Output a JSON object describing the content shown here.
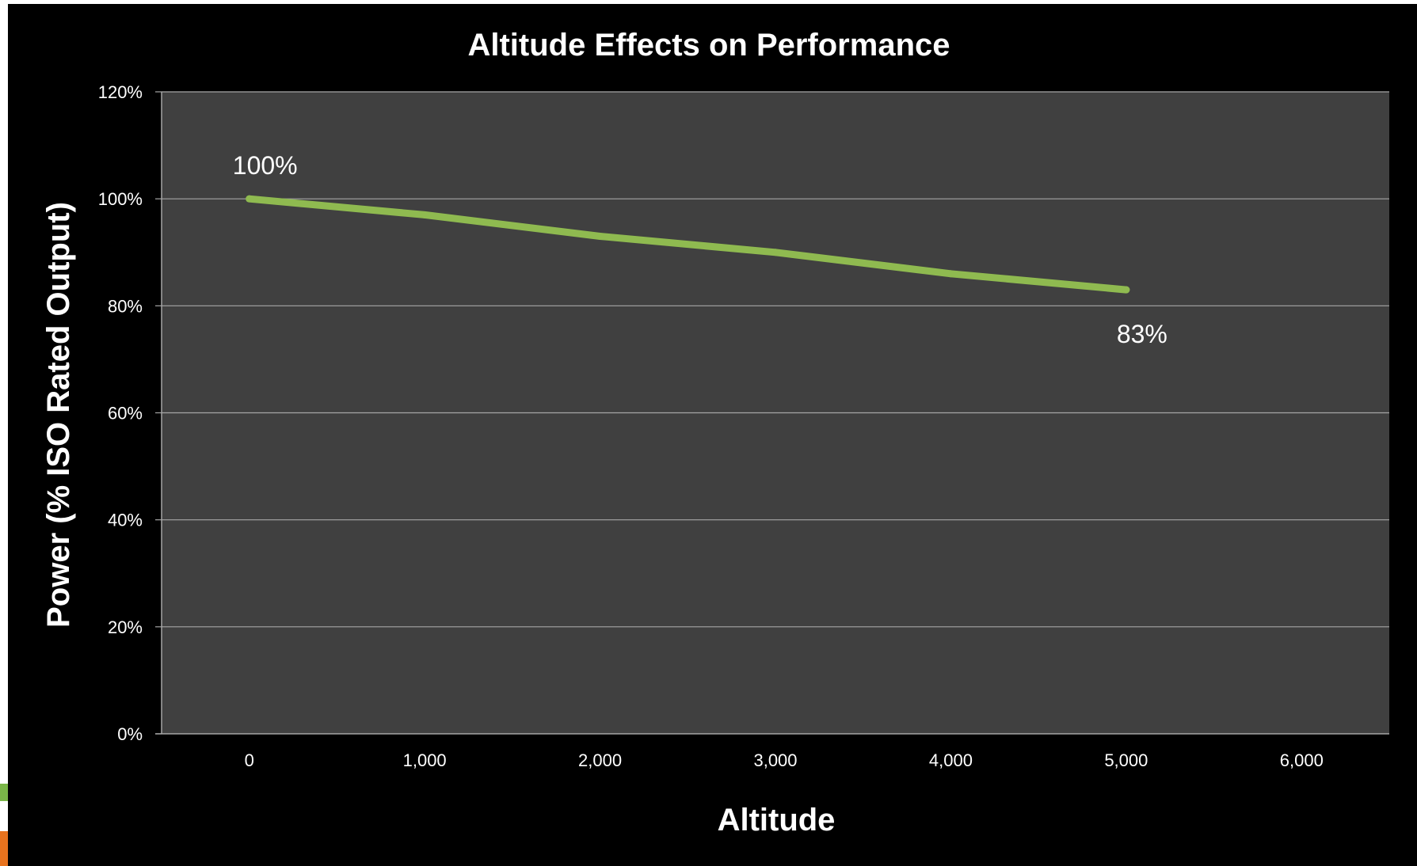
{
  "colors": {
    "background": "#000000",
    "plot_area": "#404040",
    "gridline": "#a6a6a6",
    "series_line": "#8fba50",
    "text": "#ffffff"
  },
  "chart_data": {
    "type": "line",
    "title": "Altitude Effects on Performance",
    "xlabel": "Altitude",
    "ylabel": "Power (% ISO Rated Output)",
    "xlim": [
      -500,
      6500
    ],
    "ylim": [
      0,
      1.2
    ],
    "x_ticks": [
      0,
      1000,
      2000,
      3000,
      4000,
      5000,
      6000
    ],
    "x_tick_labels": [
      "0",
      "1,000",
      "2,000",
      "3,000",
      "4,000",
      "5,000",
      "6,000"
    ],
    "y_ticks": [
      0,
      0.2,
      0.4,
      0.6,
      0.8,
      1.0,
      1.2
    ],
    "y_tick_labels": [
      "0%",
      "20%",
      "40%",
      "60%",
      "80%",
      "100%",
      "120%"
    ],
    "grid": true,
    "legend": "none",
    "series": [
      {
        "x": [
          0,
          1000,
          2000,
          3000,
          4000,
          5000
        ],
        "values": [
          1.0,
          0.97,
          0.93,
          0.9,
          0.86,
          0.83
        ]
      }
    ],
    "annotations": [
      {
        "x": 0,
        "y": 1.0,
        "text": "100%",
        "position": "above"
      },
      {
        "x": 5000,
        "y": 0.83,
        "text": "83%",
        "position": "below"
      }
    ]
  }
}
